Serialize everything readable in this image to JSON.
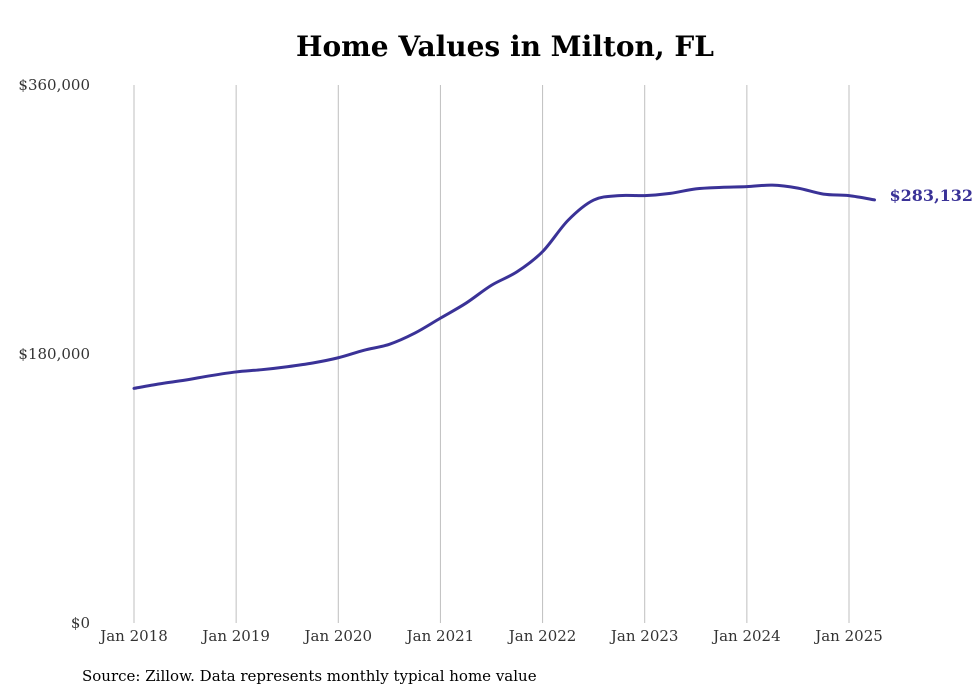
{
  "chart_data": {
    "type": "line",
    "title": "Home Values in Milton, FL",
    "xlabel": "",
    "ylabel": "",
    "x_tick_labels": [
      "Jan 2018",
      "Jan 2019",
      "Jan 2020",
      "Jan 2021",
      "Jan 2022",
      "Jan 2023",
      "Jan 2024",
      "Jan 2025"
    ],
    "y_tick_labels": [
      "$0",
      "$180,000",
      "$360,000"
    ],
    "y_ticks": [
      0,
      180000,
      360000
    ],
    "ylim": [
      0,
      360000
    ],
    "xlim": [
      "2018-01",
      "2025-04"
    ],
    "grid": "vertical",
    "legend": "none",
    "line_color": "#3a3297",
    "end_label": "$283,132",
    "series": [
      {
        "x": [
          "2018-01",
          "2018-04",
          "2018-07",
          "2018-10",
          "2019-01",
          "2019-04",
          "2019-07",
          "2019-10",
          "2020-01",
          "2020-04",
          "2020-07",
          "2020-10",
          "2021-01",
          "2021-04",
          "2021-07",
          "2021-10",
          "2022-01",
          "2022-04",
          "2022-07",
          "2022-10",
          "2023-01",
          "2023-04",
          "2023-07",
          "2023-10",
          "2024-01",
          "2024-04",
          "2024-07",
          "2024-10",
          "2025-01",
          "2025-04"
        ],
        "values": [
          157000,
          160000,
          162500,
          165500,
          168000,
          169500,
          171500,
          174000,
          177500,
          182500,
          186500,
          194000,
          204000,
          214000,
          226000,
          235000,
          248500,
          269500,
          283000,
          286000,
          286000,
          287500,
          290500,
          291500,
          292000,
          293000,
          291000,
          287000,
          286000,
          283132
        ]
      }
    ]
  },
  "source_note": "Source: Zillow. Data represents monthly typical home value"
}
